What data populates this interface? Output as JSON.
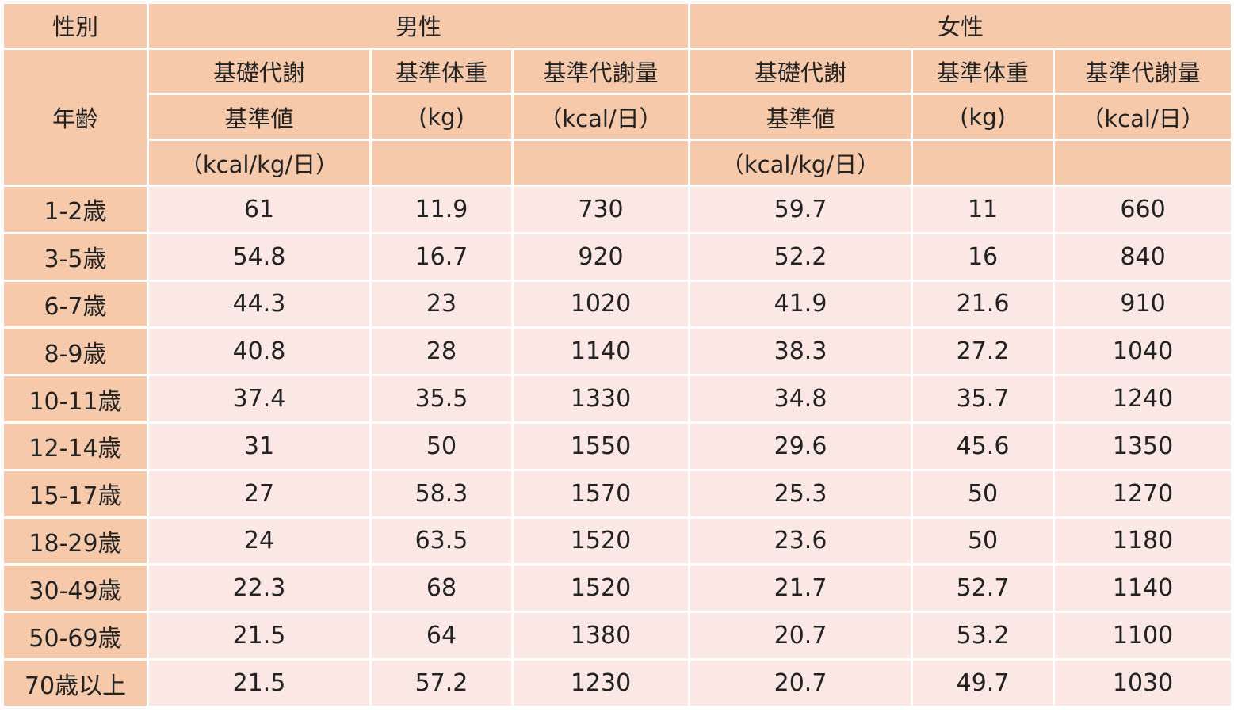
{
  "chart_data": {
    "type": "table",
    "header": {
      "sex_label": "性別",
      "age_label": "年齢",
      "male": "男性",
      "female": "女性",
      "columns": [
        {
          "line1": "基礎代謝",
          "line2": "基準値",
          "line3": "（kcal/kg/日）"
        },
        {
          "line1": "基準体重",
          "line2": "(kg)",
          "line3": ""
        },
        {
          "line1": "基準代謝量",
          "line2": "（kcal/日）",
          "line3": ""
        }
      ]
    },
    "rows": [
      {
        "age": "1-2歳",
        "values": [
          "61",
          "11.9",
          "730",
          "59.7",
          "11",
          "660"
        ]
      },
      {
        "age": "3-5歳",
        "values": [
          "54.8",
          "16.7",
          "920",
          "52.2",
          "16",
          "840"
        ]
      },
      {
        "age": "6-7歳",
        "values": [
          "44.3",
          "23",
          "1020",
          "41.9",
          "21.6",
          "910"
        ]
      },
      {
        "age": "8-9歳",
        "values": [
          "40.8",
          "28",
          "1140",
          "38.3",
          "27.2",
          "1040"
        ]
      },
      {
        "age": "10-11歳",
        "values": [
          "37.4",
          "35.5",
          "1330",
          "34.8",
          "35.7",
          "1240"
        ]
      },
      {
        "age": "12-14歳",
        "values": [
          "31",
          "50",
          "1550",
          "29.6",
          "45.6",
          "1350"
        ]
      },
      {
        "age": "15-17歳",
        "values": [
          "27",
          "58.3",
          "1570",
          "25.3",
          "50",
          "1270"
        ]
      },
      {
        "age": "18-29歳",
        "values": [
          "24",
          "63.5",
          "1520",
          "23.6",
          "50",
          "1180"
        ]
      },
      {
        "age": "30-49歳",
        "values": [
          "22.3",
          "68",
          "1520",
          "21.7",
          "52.7",
          "1140"
        ]
      },
      {
        "age": "50-69歳",
        "values": [
          "21.5",
          "64",
          "1380",
          "20.7",
          "53.2",
          "1100"
        ]
      },
      {
        "age": "70歳以上",
        "values": [
          "21.5",
          "57.2",
          "1230",
          "20.7",
          "49.7",
          "1030"
        ]
      }
    ]
  },
  "colors": {
    "header_bg": "#f7c9ab",
    "cell_bg": "#fbe8e4",
    "border": "#ffffff",
    "text": "#222222"
  }
}
